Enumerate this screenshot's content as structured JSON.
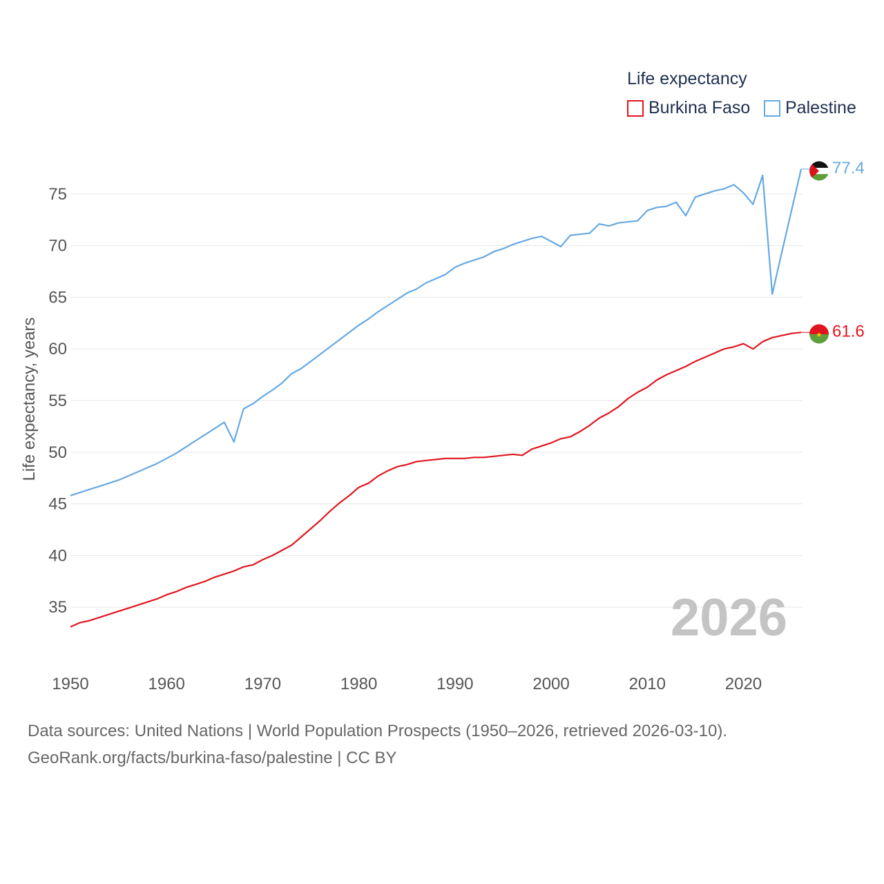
{
  "legend": {
    "title": "Life expectancy",
    "items": [
      {
        "label": "Burkina Faso",
        "color": "#e0141e"
      },
      {
        "label": "Palestine",
        "color": "#64a8e3"
      }
    ]
  },
  "footer": {
    "line1": "Data sources: United Nations | World Population Prospects (1950–2026, retrieved 2026-03-10).",
    "line2": "GeoRank.org/facts/burkina-faso/palestine | CC BY"
  },
  "chart_data": {
    "type": "line",
    "title": "Life expectancy",
    "xlabel": "",
    "ylabel": "Life expectancy, years",
    "xlim": [
      1950,
      2026
    ],
    "ylim": [
      31,
      79
    ],
    "xticks": [
      1950,
      1960,
      1970,
      1980,
      1990,
      2000,
      2010,
      2020
    ],
    "yticks": [
      35,
      40,
      45,
      50,
      55,
      60,
      65,
      70,
      75
    ],
    "grid": true,
    "watermark_year": "2026",
    "x": [
      1950,
      1951,
      1952,
      1953,
      1954,
      1955,
      1956,
      1957,
      1958,
      1959,
      1960,
      1961,
      1962,
      1963,
      1964,
      1965,
      1966,
      1967,
      1968,
      1969,
      1970,
      1971,
      1972,
      1973,
      1974,
      1975,
      1976,
      1977,
      1978,
      1979,
      1980,
      1981,
      1982,
      1983,
      1984,
      1985,
      1986,
      1987,
      1988,
      1989,
      1990,
      1991,
      1992,
      1993,
      1994,
      1995,
      1996,
      1997,
      1998,
      1999,
      2000,
      2001,
      2002,
      2003,
      2004,
      2005,
      2006,
      2007,
      2008,
      2009,
      2010,
      2011,
      2012,
      2013,
      2014,
      2015,
      2016,
      2017,
      2018,
      2019,
      2020,
      2021,
      2022,
      2023,
      2024,
      2025,
      2026
    ],
    "series": [
      {
        "name": "Burkina Faso",
        "color": "#e0141e",
        "end_label": "61.6",
        "values": [
          33.1,
          33.5,
          33.7,
          34.0,
          34.3,
          34.6,
          34.9,
          35.2,
          35.5,
          35.8,
          36.2,
          36.5,
          36.9,
          37.2,
          37.5,
          37.9,
          38.2,
          38.5,
          38.9,
          39.1,
          39.6,
          40.0,
          40.5,
          41.0,
          41.8,
          42.6,
          43.4,
          44.3,
          45.1,
          45.8,
          46.6,
          47.0,
          47.7,
          48.2,
          48.6,
          48.8,
          49.1,
          49.2,
          49.3,
          49.4,
          49.4,
          49.4,
          49.5,
          49.5,
          49.6,
          49.7,
          49.8,
          49.7,
          50.3,
          50.6,
          50.9,
          51.3,
          51.5,
          52.0,
          52.6,
          53.3,
          53.8,
          54.4,
          55.2,
          55.8,
          56.3,
          57.0,
          57.5,
          57.9,
          58.3,
          58.8,
          59.2,
          59.6,
          60.0,
          60.2,
          60.5,
          60.0,
          60.7,
          61.1,
          61.3,
          61.5,
          61.6
        ]
      },
      {
        "name": "Palestine",
        "color": "#64a8e3",
        "end_label": "77.4",
        "values": [
          45.8,
          46.1,
          46.4,
          46.7,
          47.0,
          47.3,
          47.7,
          48.1,
          48.5,
          48.9,
          49.4,
          49.9,
          50.5,
          51.1,
          51.7,
          52.3,
          52.9,
          51.0,
          54.2,
          54.7,
          55.4,
          56.0,
          56.7,
          57.6,
          58.1,
          58.8,
          59.5,
          60.2,
          60.9,
          61.6,
          62.3,
          62.9,
          63.6,
          64.2,
          64.8,
          65.4,
          65.8,
          66.4,
          66.8,
          67.2,
          67.9,
          68.3,
          68.6,
          68.9,
          69.4,
          69.7,
          70.1,
          70.4,
          70.7,
          70.9,
          70.4,
          69.9,
          71.0,
          71.1,
          71.2,
          72.1,
          71.9,
          72.2,
          72.3,
          72.4,
          73.4,
          73.7,
          73.8,
          74.2,
          72.9,
          74.7,
          75.0,
          75.3,
          75.5,
          75.9,
          75.1,
          74.0,
          76.8,
          65.3,
          69.4,
          73.4,
          77.4
        ]
      }
    ]
  }
}
